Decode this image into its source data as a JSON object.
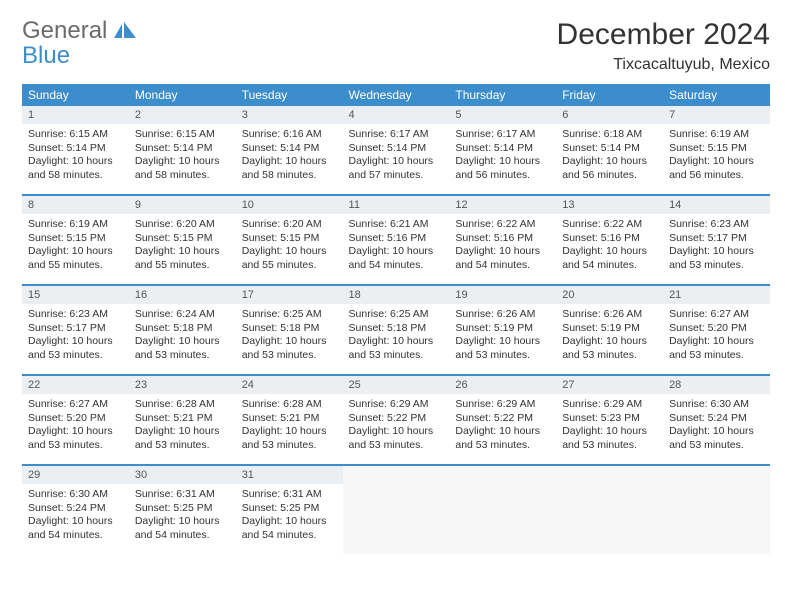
{
  "logo": {
    "line1": "General",
    "line2": "Blue"
  },
  "title": "December 2024",
  "location": "Tixcacaltuyub, Mexico",
  "colors": {
    "accent": "#3c8dcb",
    "daynum_bg": "#eceff1",
    "text": "#333333",
    "bg": "#ffffff"
  },
  "weekdays": [
    "Sunday",
    "Monday",
    "Tuesday",
    "Wednesday",
    "Thursday",
    "Friday",
    "Saturday"
  ],
  "weeks": [
    [
      {
        "n": "1",
        "sr": "Sunrise: 6:15 AM",
        "ss": "Sunset: 5:14 PM",
        "dl": "Daylight: 10 hours and 58 minutes."
      },
      {
        "n": "2",
        "sr": "Sunrise: 6:15 AM",
        "ss": "Sunset: 5:14 PM",
        "dl": "Daylight: 10 hours and 58 minutes."
      },
      {
        "n": "3",
        "sr": "Sunrise: 6:16 AM",
        "ss": "Sunset: 5:14 PM",
        "dl": "Daylight: 10 hours and 58 minutes."
      },
      {
        "n": "4",
        "sr": "Sunrise: 6:17 AM",
        "ss": "Sunset: 5:14 PM",
        "dl": "Daylight: 10 hours and 57 minutes."
      },
      {
        "n": "5",
        "sr": "Sunrise: 6:17 AM",
        "ss": "Sunset: 5:14 PM",
        "dl": "Daylight: 10 hours and 56 minutes."
      },
      {
        "n": "6",
        "sr": "Sunrise: 6:18 AM",
        "ss": "Sunset: 5:14 PM",
        "dl": "Daylight: 10 hours and 56 minutes."
      },
      {
        "n": "7",
        "sr": "Sunrise: 6:19 AM",
        "ss": "Sunset: 5:15 PM",
        "dl": "Daylight: 10 hours and 56 minutes."
      }
    ],
    [
      {
        "n": "8",
        "sr": "Sunrise: 6:19 AM",
        "ss": "Sunset: 5:15 PM",
        "dl": "Daylight: 10 hours and 55 minutes."
      },
      {
        "n": "9",
        "sr": "Sunrise: 6:20 AM",
        "ss": "Sunset: 5:15 PM",
        "dl": "Daylight: 10 hours and 55 minutes."
      },
      {
        "n": "10",
        "sr": "Sunrise: 6:20 AM",
        "ss": "Sunset: 5:15 PM",
        "dl": "Daylight: 10 hours and 55 minutes."
      },
      {
        "n": "11",
        "sr": "Sunrise: 6:21 AM",
        "ss": "Sunset: 5:16 PM",
        "dl": "Daylight: 10 hours and 54 minutes."
      },
      {
        "n": "12",
        "sr": "Sunrise: 6:22 AM",
        "ss": "Sunset: 5:16 PM",
        "dl": "Daylight: 10 hours and 54 minutes."
      },
      {
        "n": "13",
        "sr": "Sunrise: 6:22 AM",
        "ss": "Sunset: 5:16 PM",
        "dl": "Daylight: 10 hours and 54 minutes."
      },
      {
        "n": "14",
        "sr": "Sunrise: 6:23 AM",
        "ss": "Sunset: 5:17 PM",
        "dl": "Daylight: 10 hours and 53 minutes."
      }
    ],
    [
      {
        "n": "15",
        "sr": "Sunrise: 6:23 AM",
        "ss": "Sunset: 5:17 PM",
        "dl": "Daylight: 10 hours and 53 minutes."
      },
      {
        "n": "16",
        "sr": "Sunrise: 6:24 AM",
        "ss": "Sunset: 5:18 PM",
        "dl": "Daylight: 10 hours and 53 minutes."
      },
      {
        "n": "17",
        "sr": "Sunrise: 6:25 AM",
        "ss": "Sunset: 5:18 PM",
        "dl": "Daylight: 10 hours and 53 minutes."
      },
      {
        "n": "18",
        "sr": "Sunrise: 6:25 AM",
        "ss": "Sunset: 5:18 PM",
        "dl": "Daylight: 10 hours and 53 minutes."
      },
      {
        "n": "19",
        "sr": "Sunrise: 6:26 AM",
        "ss": "Sunset: 5:19 PM",
        "dl": "Daylight: 10 hours and 53 minutes."
      },
      {
        "n": "20",
        "sr": "Sunrise: 6:26 AM",
        "ss": "Sunset: 5:19 PM",
        "dl": "Daylight: 10 hours and 53 minutes."
      },
      {
        "n": "21",
        "sr": "Sunrise: 6:27 AM",
        "ss": "Sunset: 5:20 PM",
        "dl": "Daylight: 10 hours and 53 minutes."
      }
    ],
    [
      {
        "n": "22",
        "sr": "Sunrise: 6:27 AM",
        "ss": "Sunset: 5:20 PM",
        "dl": "Daylight: 10 hours and 53 minutes."
      },
      {
        "n": "23",
        "sr": "Sunrise: 6:28 AM",
        "ss": "Sunset: 5:21 PM",
        "dl": "Daylight: 10 hours and 53 minutes."
      },
      {
        "n": "24",
        "sr": "Sunrise: 6:28 AM",
        "ss": "Sunset: 5:21 PM",
        "dl": "Daylight: 10 hours and 53 minutes."
      },
      {
        "n": "25",
        "sr": "Sunrise: 6:29 AM",
        "ss": "Sunset: 5:22 PM",
        "dl": "Daylight: 10 hours and 53 minutes."
      },
      {
        "n": "26",
        "sr": "Sunrise: 6:29 AM",
        "ss": "Sunset: 5:22 PM",
        "dl": "Daylight: 10 hours and 53 minutes."
      },
      {
        "n": "27",
        "sr": "Sunrise: 6:29 AM",
        "ss": "Sunset: 5:23 PM",
        "dl": "Daylight: 10 hours and 53 minutes."
      },
      {
        "n": "28",
        "sr": "Sunrise: 6:30 AM",
        "ss": "Sunset: 5:24 PM",
        "dl": "Daylight: 10 hours and 53 minutes."
      }
    ],
    [
      {
        "n": "29",
        "sr": "Sunrise: 6:30 AM",
        "ss": "Sunset: 5:24 PM",
        "dl": "Daylight: 10 hours and 54 minutes."
      },
      {
        "n": "30",
        "sr": "Sunrise: 6:31 AM",
        "ss": "Sunset: 5:25 PM",
        "dl": "Daylight: 10 hours and 54 minutes."
      },
      {
        "n": "31",
        "sr": "Sunrise: 6:31 AM",
        "ss": "Sunset: 5:25 PM",
        "dl": "Daylight: 10 hours and 54 minutes."
      },
      null,
      null,
      null,
      null
    ]
  ]
}
